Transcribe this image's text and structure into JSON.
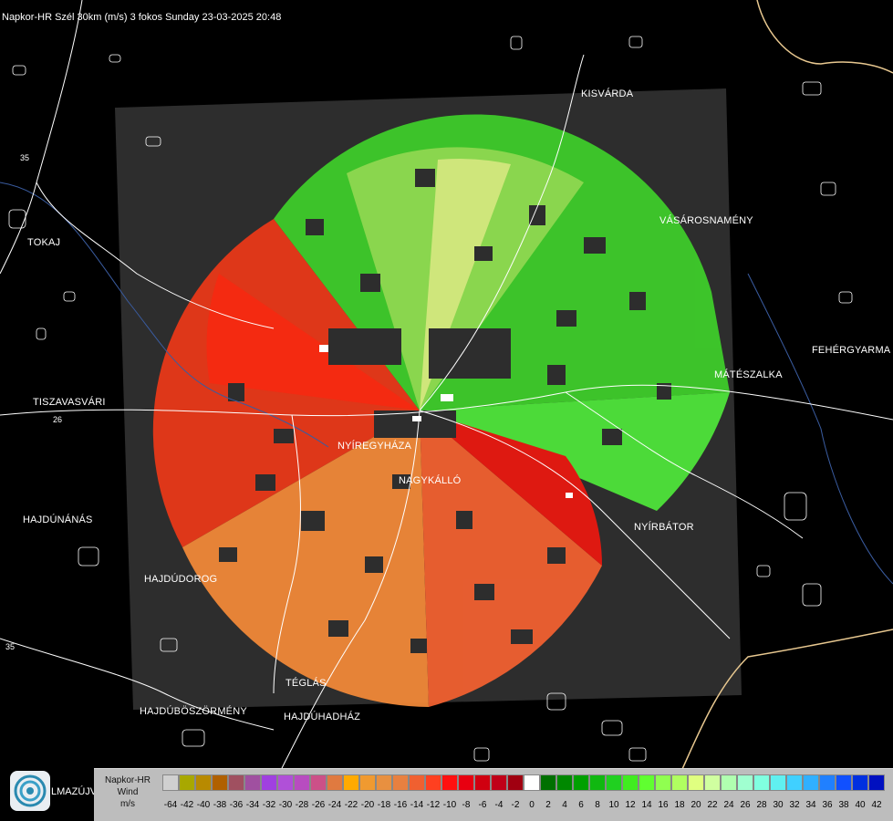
{
  "title": "Napkor-HR Szél 30km (m/s) 3 fokos Sunday 23-03-2025 20:48",
  "road_numbers": [
    "35",
    "26",
    "35"
  ],
  "cities": [
    {
      "key": "kisvarda",
      "name": "KISVÁRDA"
    },
    {
      "key": "tokaj",
      "name": "TOKAJ"
    },
    {
      "key": "vasarosnameny",
      "name": "VÁSÁROSNAMÉNY"
    },
    {
      "key": "fehergyarmat",
      "name": "FEHÉRGYARMA"
    },
    {
      "key": "mateszalka",
      "name": "MÁTÉSZALKA"
    },
    {
      "key": "tiszavasvari",
      "name": "TISZAVASVÁRI"
    },
    {
      "key": "nyiregyhaza",
      "name": "NYÍREGYHÁZA"
    },
    {
      "key": "nagykallo",
      "name": "NAGYKÁLLÓ"
    },
    {
      "key": "hajdunanas",
      "name": "HAJDÚNÁNÁS"
    },
    {
      "key": "nyirbator",
      "name": "NYÍRBÁTOR"
    },
    {
      "key": "hajdudorog",
      "name": "HAJDÚDOROG"
    },
    {
      "key": "teglas",
      "name": "TÉGLÁS"
    },
    {
      "key": "hajduboszormeny",
      "name": "HAJDÚBÖSZÖRMÉNY"
    },
    {
      "key": "hajduhadhaz",
      "name": "HAJDÚHADHÁZ"
    },
    {
      "key": "balmazujvaros",
      "name": "LMAZÚJVÁR"
    }
  ],
  "legend": {
    "line1": "Napkor-HR",
    "line2": "Wind",
    "line3": "m/s",
    "ticks": [
      "-64",
      "-42",
      "-40",
      "-38",
      "-36",
      "-34",
      "-32",
      "-30",
      "-28",
      "-26",
      "-24",
      "-22",
      "-20",
      "-18",
      "-16",
      "-14",
      "-12",
      "-10",
      "-8",
      "-6",
      "-4",
      "-2",
      "0",
      "2",
      "4",
      "6",
      "8",
      "10",
      "12",
      "14",
      "16",
      "18",
      "20",
      "22",
      "24",
      "26",
      "28",
      "30",
      "32",
      "34",
      "36",
      "38",
      "40",
      "42"
    ],
    "colors": [
      "#d0d0d0",
      "#a8a800",
      "#b88a00",
      "#b06000",
      "#a05060",
      "#a050a0",
      "#a040e0",
      "#b050d8",
      "#b84cc0",
      "#cc5088",
      "#e07a40",
      "#ffaa00",
      "#f09a30",
      "#e89040",
      "#e88040",
      "#f06030",
      "#ff4020",
      "#ff1010",
      "#e80010",
      "#d00010",
      "#c00018",
      "#a00010",
      "#ffffff",
      "#007000",
      "#008800",
      "#00a000",
      "#10b810",
      "#20d020",
      "#40ec20",
      "#60ff30",
      "#90ff50",
      "#b0ff60",
      "#e0ff80",
      "#d0ffa0",
      "#b0ffb0",
      "#a0ffd0",
      "#80ffe0",
      "#60f0f0",
      "#40d0ff",
      "#30b0ff",
      "#2080ff",
      "#1050ff",
      "#0030e0",
      "#0010c0"
    ]
  },
  "colors": {
    "background": "#000000",
    "radar_panel": "#2d2d2d",
    "legend_bg": "#bdbdbd"
  }
}
